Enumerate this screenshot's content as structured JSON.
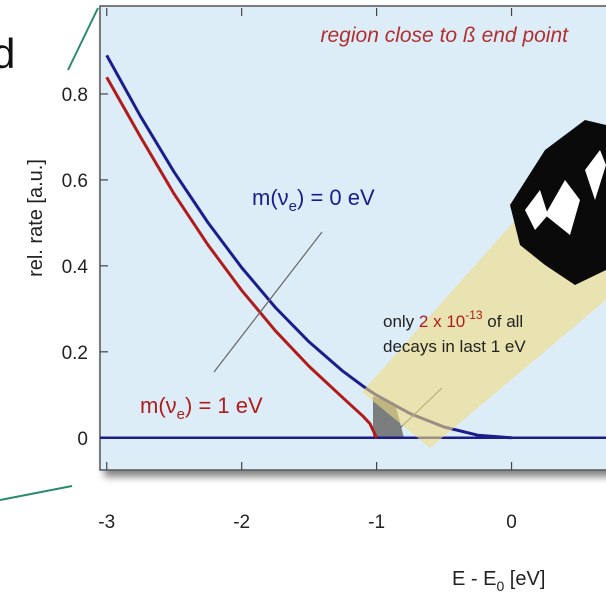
{
  "background_text": "d",
  "chart_data": {
    "type": "line",
    "title": "region close to ß end point",
    "x_label": [
      "E - E",
      "0",
      " [eV]"
    ],
    "y_label": "rel. rate [a.u.]",
    "x": [
      -3,
      -2.75,
      -2.5,
      -2.25,
      -2,
      -1.75,
      -1.5,
      -1.25,
      -1.1,
      -1.05,
      -1,
      -0.75,
      -0.5,
      -0.25,
      0
    ],
    "series": [
      {
        "name": "m(νe) = 0 eV",
        "color": "#1c1c8c",
        "values": [
          0.89,
          0.748,
          0.618,
          0.501,
          0.396,
          0.303,
          0.223,
          0.155,
          0.12,
          0.109,
          0.099,
          0.056,
          0.025,
          0.006,
          0
        ]
      },
      {
        "name": "m(νe) = 1 eV",
        "color": "#b01c1c",
        "values": [
          0.839,
          0.7,
          0.567,
          0.449,
          0.343,
          0.249,
          0.166,
          0.093,
          0.05,
          0.033,
          0,
          null,
          null,
          null,
          null
        ]
      }
    ],
    "xlim": [
      -3.05,
      0.7
    ],
    "ylim": [
      -0.075,
      1.0
    ],
    "xticks": [
      -3,
      -2,
      -1,
      0
    ],
    "yticks": [
      0,
      0.2,
      0.4,
      0.6,
      0.8
    ],
    "annotations": {
      "massless": [
        "m(ν",
        "e",
        ") = 0 eV"
      ],
      "massive": [
        "m(ν",
        "e",
        ") = 1 eV"
      ],
      "fraction_line1": [
        "only ",
        "2 x 10",
        "-13",
        " of all"
      ],
      "fraction_line2": "decays in last 1 eV"
    }
  }
}
